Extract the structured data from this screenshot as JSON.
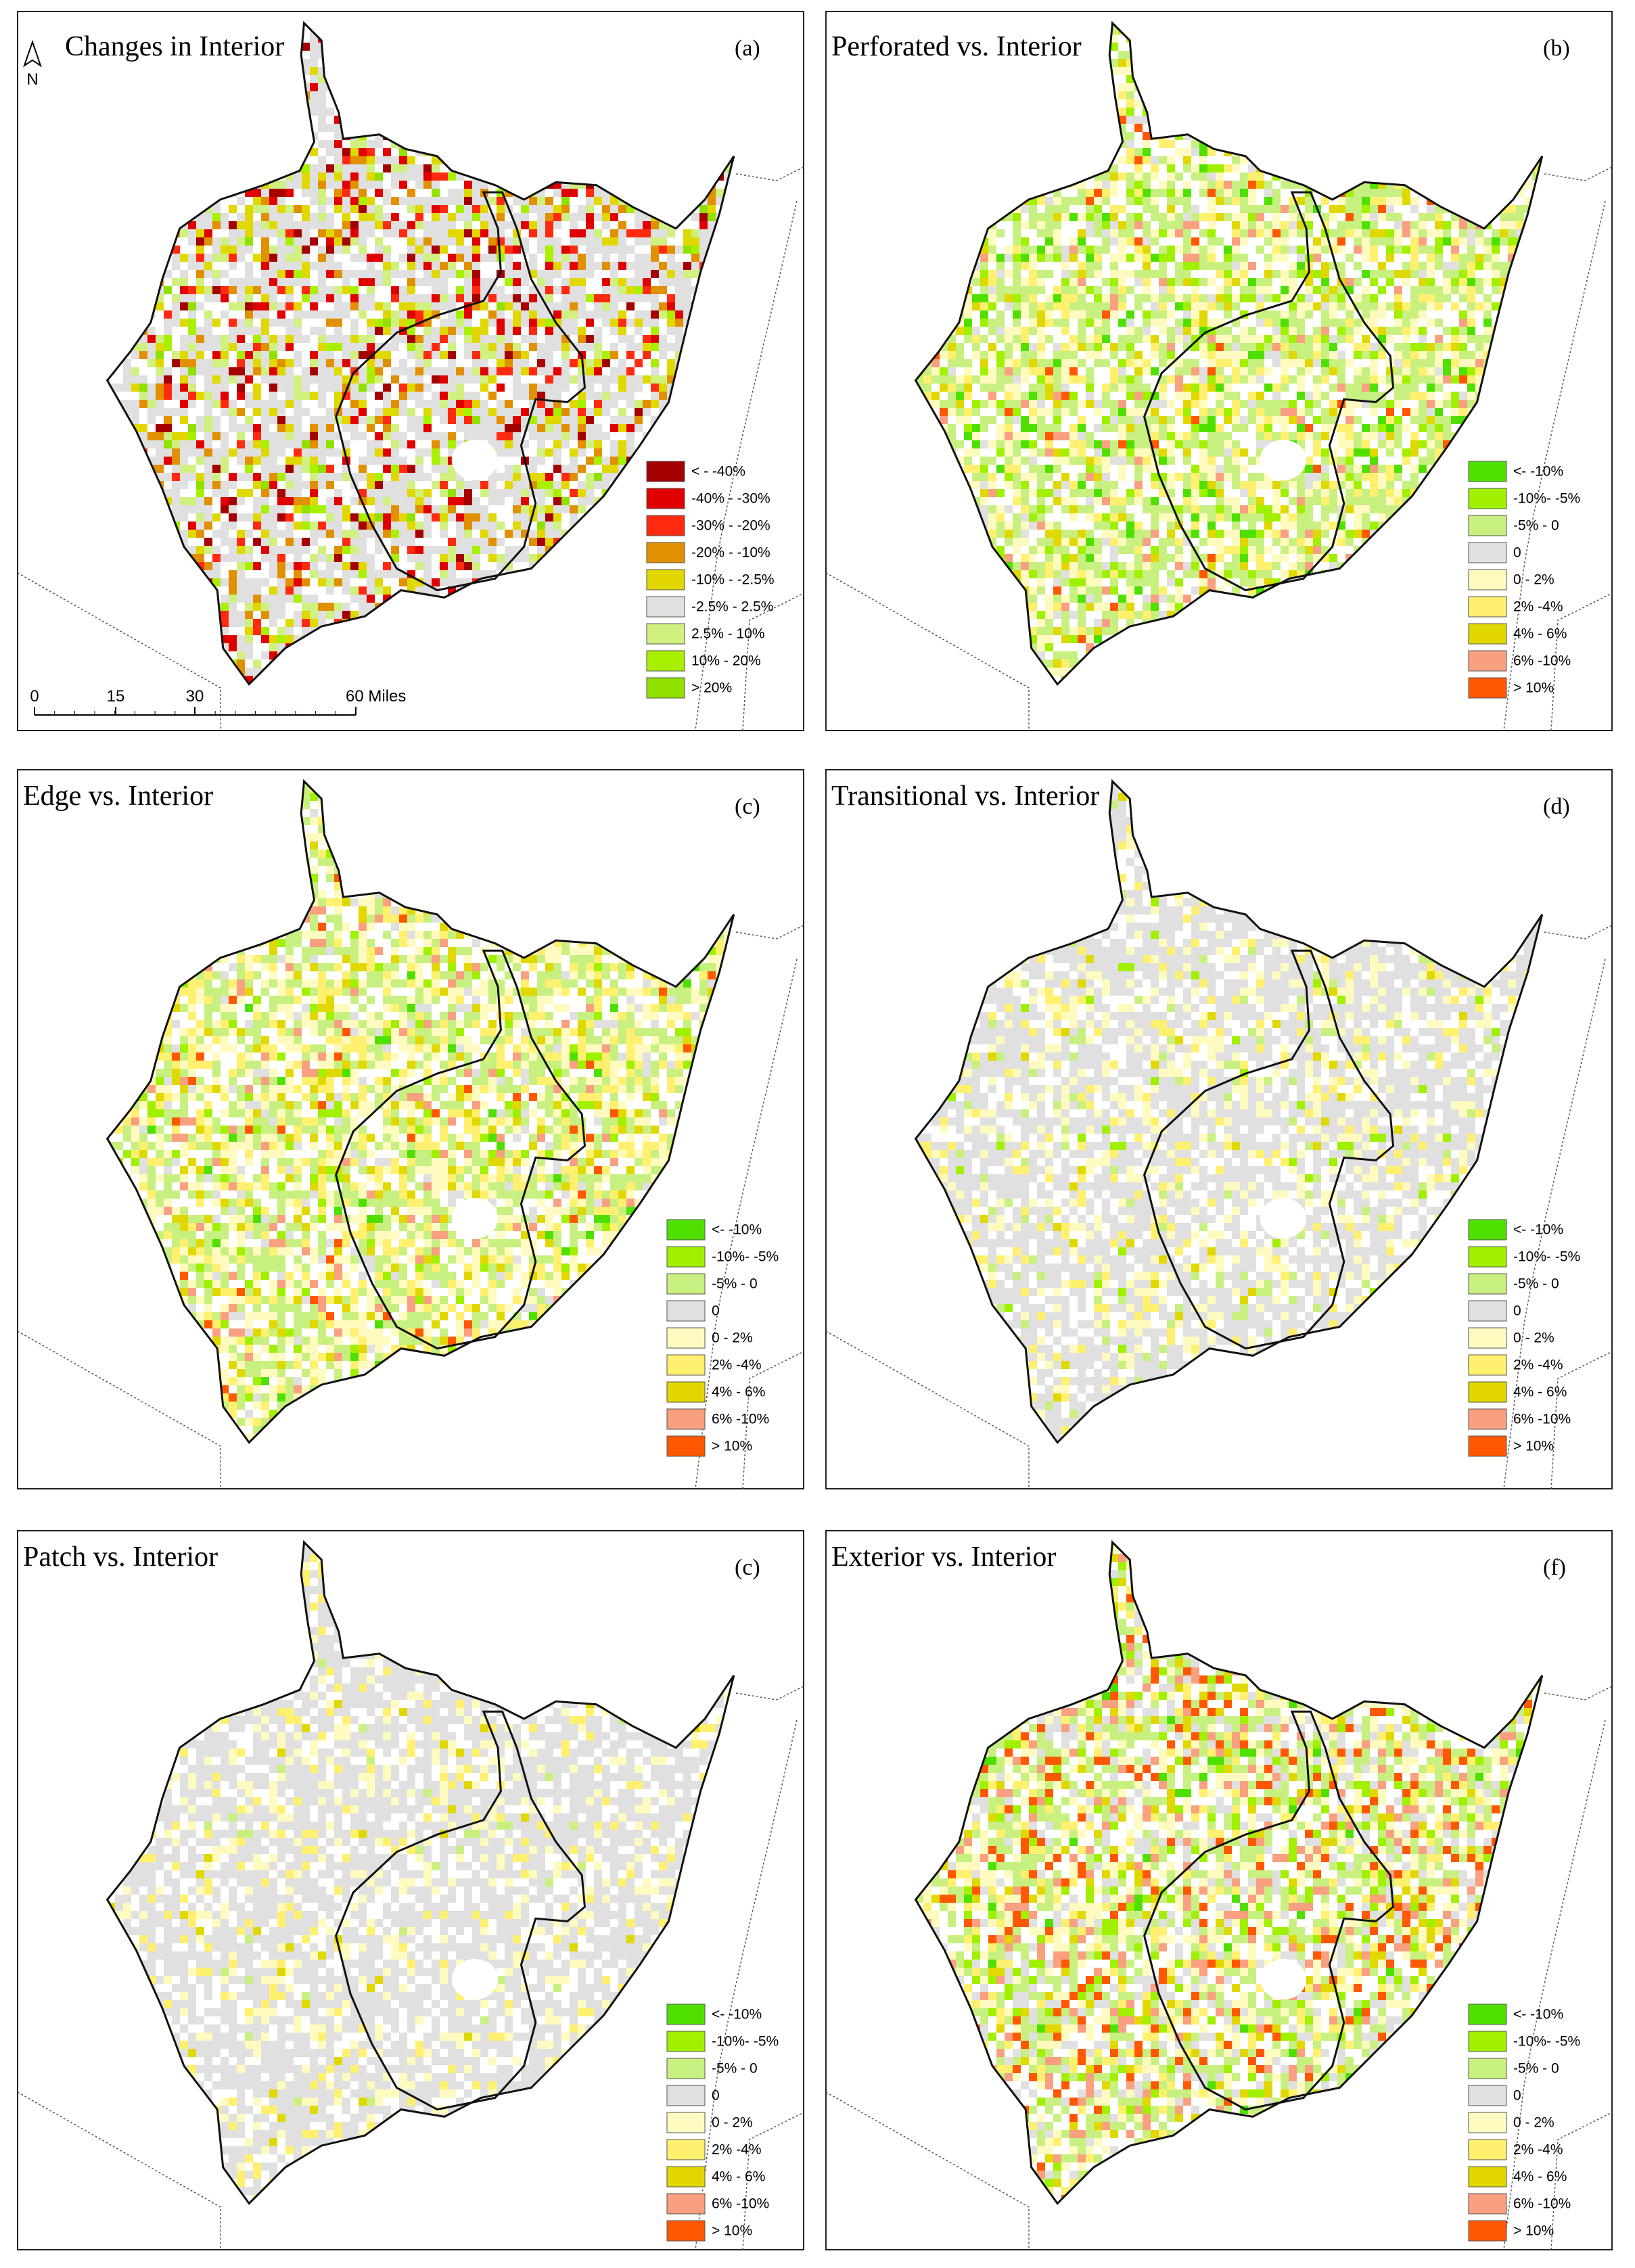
{
  "north": "N",
  "scale_bar": {
    "labels": [
      "0",
      "15",
      "30",
      "60 Miles"
    ]
  },
  "panels": [
    {
      "title": "Changes in Interior",
      "letter": "(a)",
      "legend": [
        {
          "label": "< - -40%",
          "color": "#a50000"
        },
        {
          "label": "-40% - -30%",
          "color": "#e00000"
        },
        {
          "label": "-30% - -20%",
          "color": "#ff2a10"
        },
        {
          "label": "-20% - -10%",
          "color": "#e09000"
        },
        {
          "label": "-10% - -2.5%",
          "color": "#e0d800"
        },
        {
          "label": "-2.5% - 2.5%",
          "color": "#e0e0e0"
        },
        {
          "label": "2.5% - 10%",
          "color": "#d0f080"
        },
        {
          "label": "10% - 20%",
          "color": "#a8f000"
        },
        {
          "label": "> 20%",
          "color": "#90e000"
        }
      ]
    },
    {
      "title": "Perforated vs. Interior",
      "letter": "(b)",
      "legend": [
        {
          "label": "<- -10%",
          "color": "#50e000"
        },
        {
          "label": "-10%- -5%",
          "color": "#a0f000"
        },
        {
          "label": "-5% - 0",
          "color": "#c8f080"
        },
        {
          "label": "0",
          "color": "#e0e0e0"
        },
        {
          "label": "0 - 2%",
          "color": "#fffbc0"
        },
        {
          "label": "2% -4%",
          "color": "#fff070"
        },
        {
          "label": "4% - 6%",
          "color": "#e0d800"
        },
        {
          "label": "6% -10%",
          "color": "#f8a080"
        },
        {
          "label": "> 10%",
          "color": "#ff5800"
        }
      ]
    },
    {
      "title": "Edge vs. Interior",
      "letter": "(c)",
      "legend": [
        {
          "label": "<- -10%",
          "color": "#50e000"
        },
        {
          "label": "-10%- -5%",
          "color": "#a0f000"
        },
        {
          "label": "-5% - 0",
          "color": "#c8f080"
        },
        {
          "label": "0",
          "color": "#e0e0e0"
        },
        {
          "label": "0 - 2%",
          "color": "#fffbc0"
        },
        {
          "label": "2% -4%",
          "color": "#fff070"
        },
        {
          "label": "4% - 6%",
          "color": "#e0d800"
        },
        {
          "label": "6% -10%",
          "color": "#f8a080"
        },
        {
          "label": "> 10%",
          "color": "#ff5800"
        }
      ]
    },
    {
      "title": "Transitional vs. Interior",
      "letter": "(d)",
      "legend": [
        {
          "label": "<- -10%",
          "color": "#50e000"
        },
        {
          "label": "-10%- -5%",
          "color": "#a0f000"
        },
        {
          "label": "-5% - 0",
          "color": "#c8f080"
        },
        {
          "label": "0",
          "color": "#e0e0e0"
        },
        {
          "label": "0 - 2%",
          "color": "#fffbc0"
        },
        {
          "label": "2% -4%",
          "color": "#fff070"
        },
        {
          "label": "4% - 6%",
          "color": "#e0d800"
        },
        {
          "label": "6% -10%",
          "color": "#f8a080"
        },
        {
          "label": "> 10%",
          "color": "#ff5800"
        }
      ]
    },
    {
      "title": "Patch vs. Interior",
      "letter": "(c)",
      "legend": [
        {
          "label": "<- -10%",
          "color": "#50e000"
        },
        {
          "label": "-10%- -5%",
          "color": "#a0f000"
        },
        {
          "label": "-5% - 0",
          "color": "#c8f080"
        },
        {
          "label": "0",
          "color": "#e0e0e0"
        },
        {
          "label": "0 - 2%",
          "color": "#fffbc0"
        },
        {
          "label": "2% -4%",
          "color": "#fff070"
        },
        {
          "label": "4% - 6%",
          "color": "#e0d800"
        },
        {
          "label": "6% -10%",
          "color": "#f8a080"
        },
        {
          "label": "> 10%",
          "color": "#ff5800"
        }
      ]
    },
    {
      "title": "Exterior vs. Interior",
      "letter": "(f)",
      "legend": [
        {
          "label": "<- -10%",
          "color": "#50e000"
        },
        {
          "label": "-10%- -5%",
          "color": "#a0f000"
        },
        {
          "label": "-5% - 0",
          "color": "#c8f080"
        },
        {
          "label": "0",
          "color": "#e0e0e0"
        },
        {
          "label": "0 - 2%",
          "color": "#fffbc0"
        },
        {
          "label": "2% -4%",
          "color": "#fff070"
        },
        {
          "label": "4% - 6%",
          "color": "#e0d800"
        },
        {
          "label": "6% -10%",
          "color": "#f8a080"
        },
        {
          "label": "> 10%",
          "color": "#ff5800"
        }
      ]
    }
  ]
}
